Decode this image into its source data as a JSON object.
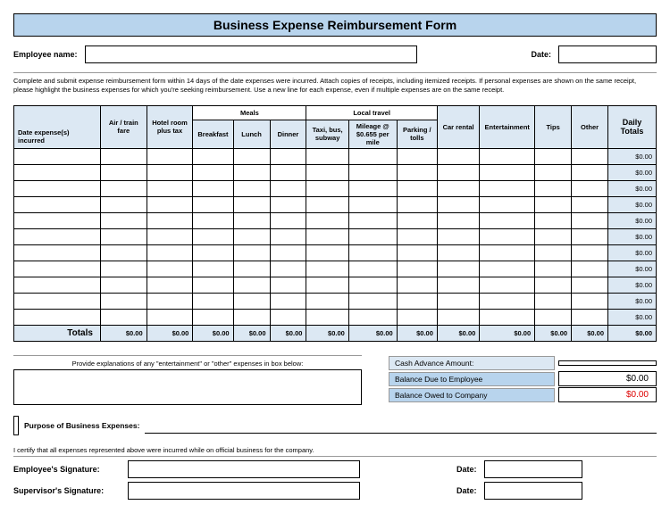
{
  "title": "Business Expense Reimbursement Form",
  "header": {
    "employee_name_label": "Employee name:",
    "date_label": "Date:"
  },
  "instructions": "Complete and submit expense reimbursement form within 14 days of the date expenses were incurred. Attach copies of receipts, including itemized receipts. If personal expenses are shown on the same receipt, please highlight the business expenses for which you're seeking reimbursement. Use a new line for each expense, even if multiple expenses are on the same receipt.",
  "table": {
    "group_meals": "Meals",
    "group_travel": "Local travel",
    "columns": {
      "date": "Date expense(s) incurred",
      "air": "Air / train fare",
      "hotel": "Hotel room plus tax",
      "breakfast": "Breakfast",
      "lunch": "Lunch",
      "dinner": "Dinner",
      "taxi": "Taxi, bus, subway",
      "mileage": "Mileage @ $0.655 per mile",
      "parking": "Parking / tolls",
      "car": "Car rental",
      "entertainment": "Entertainment",
      "tips": "Tips",
      "other": "Other",
      "daily": "Daily Totals"
    },
    "row_count": 11,
    "daily_total_value": "$0.00",
    "totals_label": "Totals",
    "totals": [
      "$0.00",
      "$0.00",
      "$0.00",
      "$0.00",
      "$0.00",
      "$0.00",
      "$0.00",
      "$0.00",
      "$0.00",
      "$0.00",
      "$0.00",
      "$0.00",
      "$0.00"
    ]
  },
  "explain": {
    "label": "Provide explanations of any \"entertainment\" or \"other\" expenses in box below:"
  },
  "summary": {
    "cash_advance_label": "Cash Advance Amount:",
    "balance_employee_label": "Balance Due to Employee",
    "balance_employee_value": "$0.00",
    "balance_company_label": "Balance Owed to Company",
    "balance_company_value": "$0.00"
  },
  "purpose": {
    "label": "Purpose of Business Expenses:"
  },
  "cert_text": "I certify that all expenses represented above were incurred while on official business for the company.",
  "signatures": {
    "employee_label": "Employee's Signature:",
    "supervisor_label": "Supervisor's Signature:",
    "date_label": "Date:"
  },
  "colors": {
    "header_blue": "#b8d4ed",
    "light_blue": "#dce8f3",
    "red": "#d00000"
  }
}
